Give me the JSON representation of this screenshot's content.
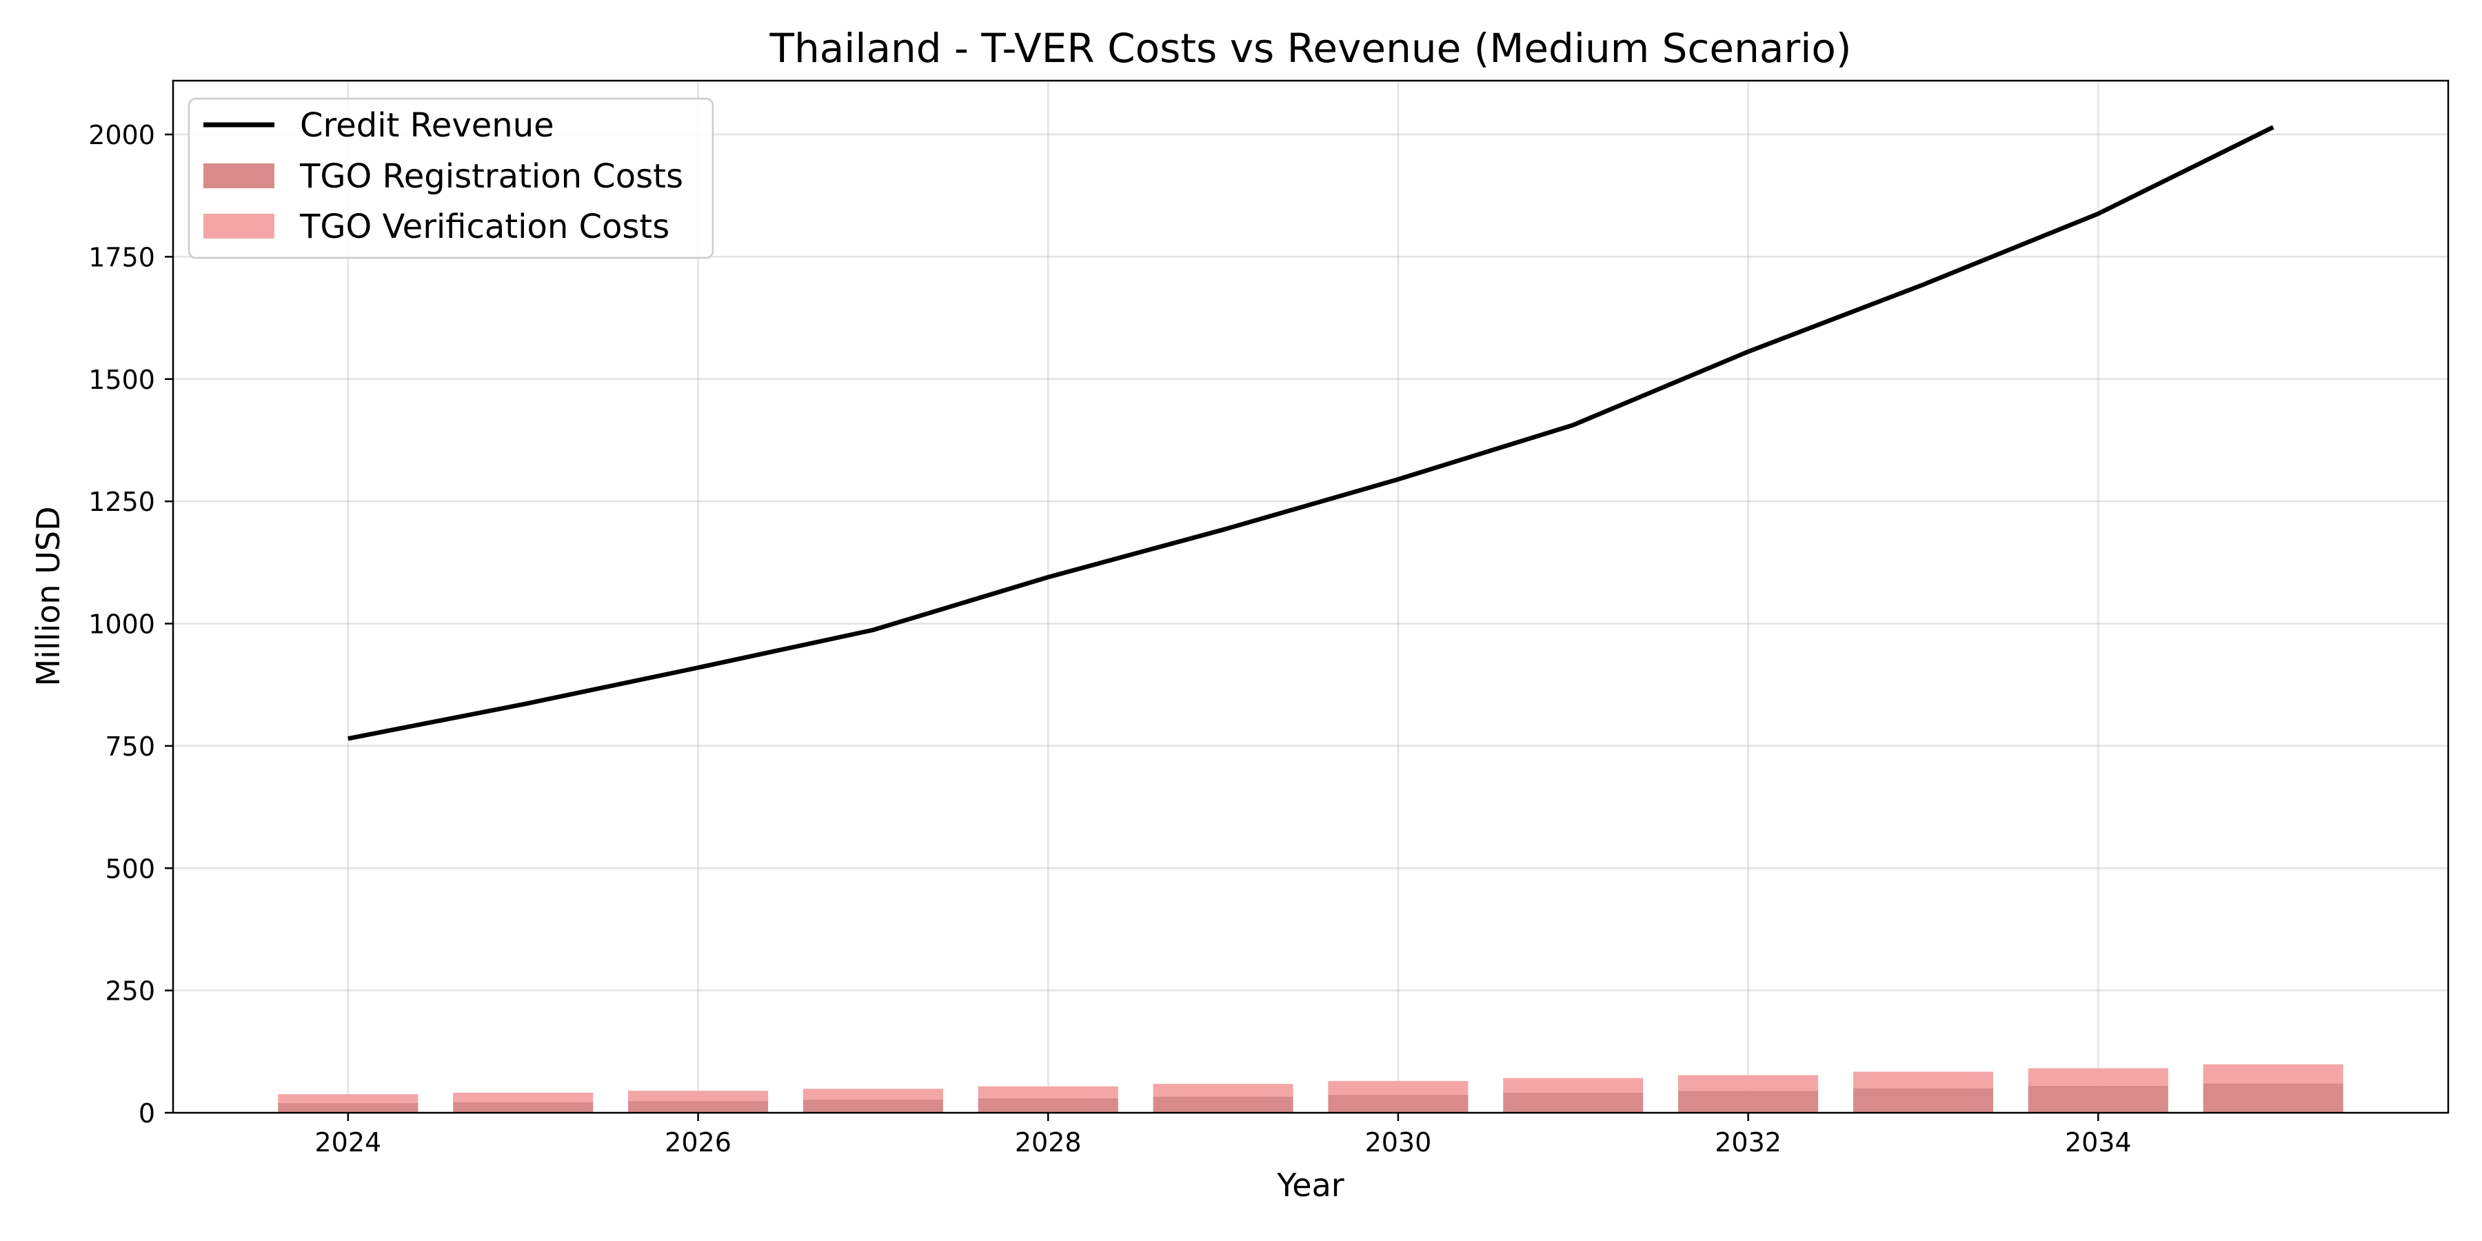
{
  "chart_data": {
    "type": "bar",
    "title": "Thailand - T-VER Costs vs Revenue (Medium Scenario)",
    "xlabel": "Year",
    "ylabel": "Million USD",
    "x": [
      2024,
      2025,
      2026,
      2027,
      2028,
      2029,
      2030,
      2031,
      2032,
      2033,
      2034,
      2035
    ],
    "x_ticks": [
      2024,
      2026,
      2028,
      2030,
      2032,
      2034
    ],
    "y_ticks": [
      0,
      250,
      500,
      750,
      1000,
      1250,
      1500,
      1750,
      2000
    ],
    "xlim": [
      2023.0,
      2036.0
    ],
    "ylim": [
      0,
      2110
    ],
    "grid": true,
    "legend_position": "top-left",
    "stacked": true,
    "series": [
      {
        "name": "Credit Revenue",
        "kind": "line",
        "color": "#000000",
        "values": [
          765,
          835,
          910,
          987,
          1095,
          1192,
          1295,
          1406,
          1556,
          1693,
          1838,
          2015
        ]
      },
      {
        "name": "TGO Registration Costs",
        "kind": "bar",
        "color": "#d98b8b",
        "values": [
          20,
          22,
          24,
          27,
          30,
          33,
          37,
          41,
          45,
          50,
          55,
          60
        ]
      },
      {
        "name": "TGO Verification Costs",
        "kind": "bar",
        "color": "#f4a6a6",
        "values": [
          18,
          19,
          21,
          22,
          24,
          26,
          28,
          30,
          32,
          34,
          36,
          39
        ]
      }
    ]
  }
}
